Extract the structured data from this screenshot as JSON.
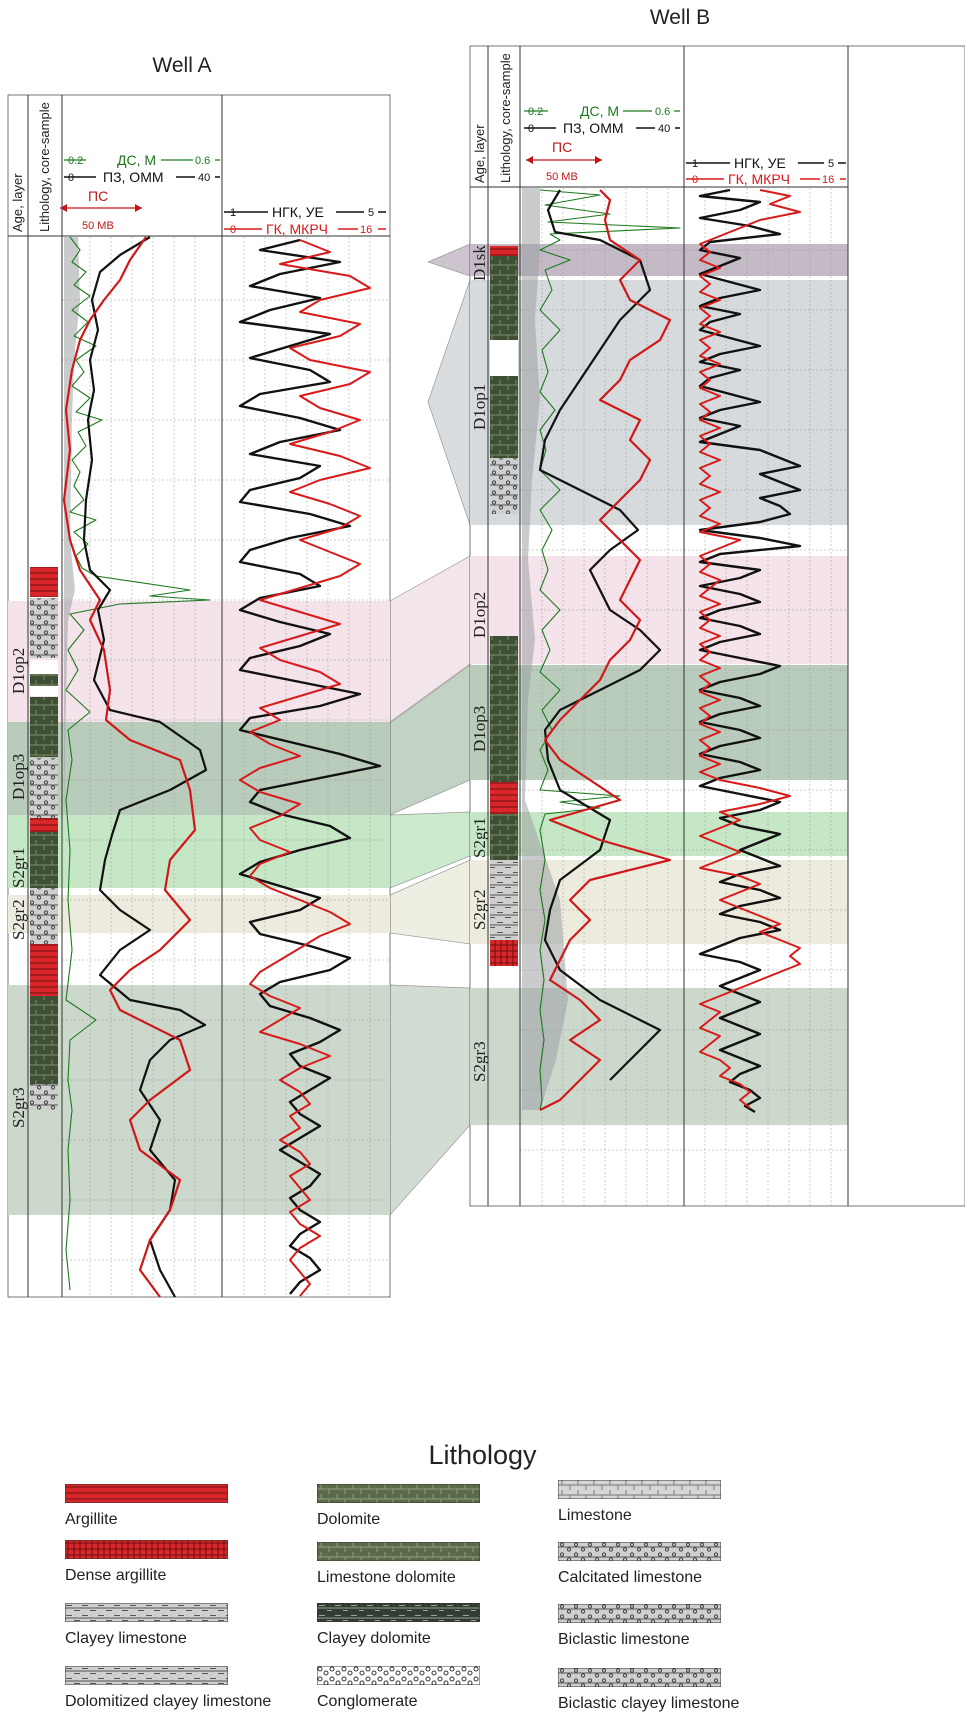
{
  "well_a": {
    "title": "Well A",
    "header": {
      "age_layer": "Age, layer",
      "lithology_core": "Lithology, core-sample",
      "ds": {
        "label": "ДС, М",
        "min": "0.2",
        "max": "0.6"
      },
      "pz": {
        "label": "ПЗ, ОММ",
        "min": "0",
        "max": "40"
      },
      "ps": {
        "label": "ПС",
        "scale": "50 МВ"
      },
      "ngk": {
        "label": "НГК, УЕ",
        "min": "1",
        "max": "5"
      },
      "gk": {
        "label": "ГК, МКРЧ",
        "min": "0",
        "max": "16"
      }
    },
    "layers": [
      "D1op2",
      "D1op3",
      "S2gr1",
      "S2gr2",
      "S2gr3"
    ]
  },
  "well_b": {
    "title": "Well B",
    "header": {
      "age_layer": "Age, layer",
      "lithology_core": "Lithology, core-sample",
      "ds": {
        "label": "ДС, М",
        "min": "0.2",
        "max": "0.6"
      },
      "pz": {
        "label": "ПЗ, ОММ",
        "min": "0",
        "max": "40"
      },
      "ps": {
        "label": "ПС",
        "scale": "50 МВ"
      },
      "ngk": {
        "label": "НГК, УЕ",
        "min": "1",
        "max": "5"
      },
      "gk": {
        "label": "ГК, МКРЧ",
        "min": "0",
        "max": "16"
      }
    },
    "layers": [
      "D1sk",
      "D1op1",
      "D1op2",
      "D1op3",
      "S2gr1",
      "S2gr2",
      "S2gr3"
    ]
  },
  "legend": {
    "title": "Lithology",
    "items": [
      {
        "label": "Argillite",
        "pattern": "argillite"
      },
      {
        "label": "Dense argillite",
        "pattern": "dense-argillite"
      },
      {
        "label": "Clayey limestone",
        "pattern": "clayey-limestone"
      },
      {
        "label": "Dolomitized clayey limestone",
        "pattern": "dolomitized-clayey-limestone"
      },
      {
        "label": "Dolomite",
        "pattern": "dolomite"
      },
      {
        "label": "Limestone dolomite",
        "pattern": "limestone-dolomite"
      },
      {
        "label": "Clayey dolomite",
        "pattern": "clayey-dolomite"
      },
      {
        "label": "Conglomerate",
        "pattern": "conglomerate"
      },
      {
        "label": "Limestone",
        "pattern": "limestone"
      },
      {
        "label": "Calcitated limestone",
        "pattern": "calcitated-limestone"
      },
      {
        "label": "Biclastic limestone",
        "pattern": "biclastic-limestone"
      },
      {
        "label": "Biclastic clayey limestone",
        "pattern": "biclastic-clayey-limestone"
      }
    ]
  },
  "colors": {
    "ds_curve": "#1d7a1d",
    "pz_curve": "#111111",
    "ps_curve": "#d01818",
    "ngk_curve": "#111111",
    "gk_curve": "#d81a1a",
    "argillite": "#d8262a",
    "dolomite": "#4a5a3c",
    "limestone": "#c8c8c8",
    "d1op2_band": "#f4e3ea",
    "d1op3_band": "#b9cbbb",
    "s2gr1_band": "#c5e7c6",
    "s2gr2_band": "#ecebdd",
    "s2gr3_band": "#ccd8cc",
    "d1op1_band": "#d6dadc",
    "d1sk_band": "#c4bac6"
  }
}
